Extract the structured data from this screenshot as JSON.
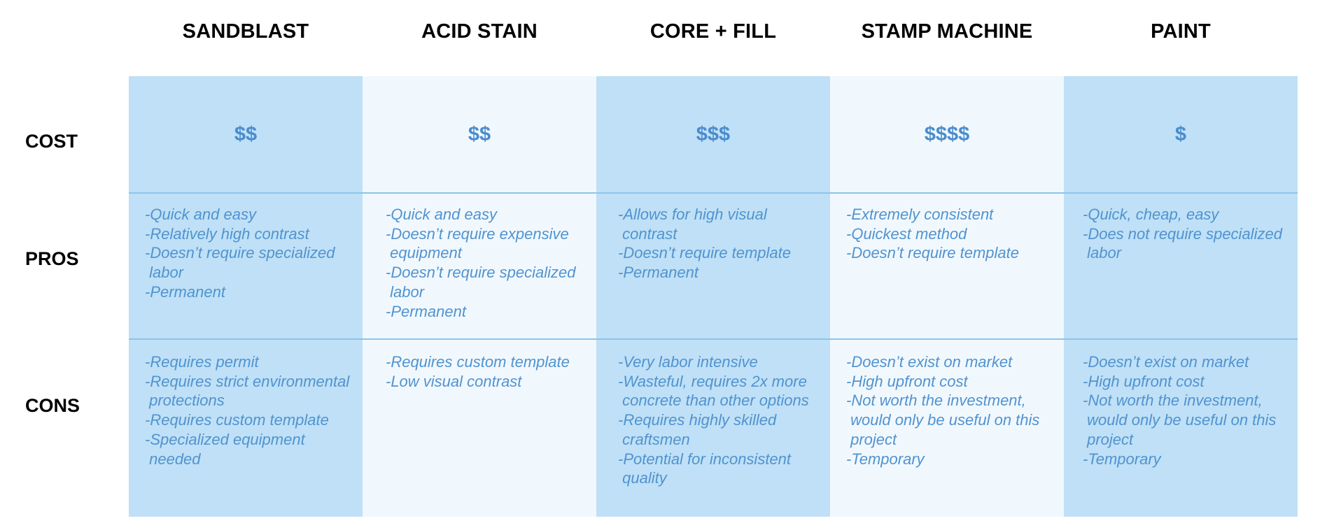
{
  "columns": [
    {
      "header": "SANDBLAST",
      "cost": "$$",
      "pros": [
        "-Quick and easy",
        "-Relatively high contrast",
        "-Doesn’t require specialized",
        " labor",
        "-Permanent"
      ],
      "cons": [
        "-Requires permit",
        "-Requires strict environmental",
        " protections",
        "-Requires custom template",
        "-Specialized equipment",
        " needed"
      ]
    },
    {
      "header": "ACID STAIN",
      "cost": "$$",
      "pros": [
        "-Quick and easy",
        "-Doesn’t require expensive",
        " equipment",
        "-Doesn’t require specialized",
        " labor",
        "-Permanent"
      ],
      "cons": [
        "-Requires custom template",
        "-Low visual contrast"
      ]
    },
    {
      "header": "CORE + FILL",
      "cost": "$$$",
      "pros": [
        "-Allows for high visual",
        " contrast",
        "-Doesn’t require template",
        "-Permanent"
      ],
      "cons": [
        "-Very labor intensive",
        "-Wasteful, requires 2x more",
        " concrete than other options",
        "-Requires highly skilled",
        " craftsmen",
        "-Potential for inconsistent",
        " quality"
      ]
    },
    {
      "header": "STAMP MACHINE",
      "cost": "$$$$",
      "pros": [
        "-Extremely consistent",
        "-Quickest method",
        "-Doesn’t require template"
      ],
      "cons": [
        "-Doesn’t exist on market",
        "-High upfront cost",
        "-Not worth the investment,",
        " would only be useful on this",
        " project",
        "-Temporary"
      ]
    },
    {
      "header": "PAINT",
      "cost": "$",
      "pros": [
        "-Quick, cheap, easy",
        "-Does not require specialized",
        " labor"
      ],
      "cons": [
        "-Doesn’t exist on market",
        "-High upfront cost",
        "-Not worth the investment,",
        " would only be useful on this",
        " project",
        "-Temporary"
      ]
    }
  ],
  "row_labels": {
    "cost": "COST",
    "pros": "PROS",
    "cons": "CONS"
  },
  "colors": {
    "dark_column": "#bfe0f6",
    "light_column": "#f1f8fd",
    "divider": "#8cc4ea",
    "cell_text": "#5093d0",
    "cost_text": "#4a8ccd"
  }
}
